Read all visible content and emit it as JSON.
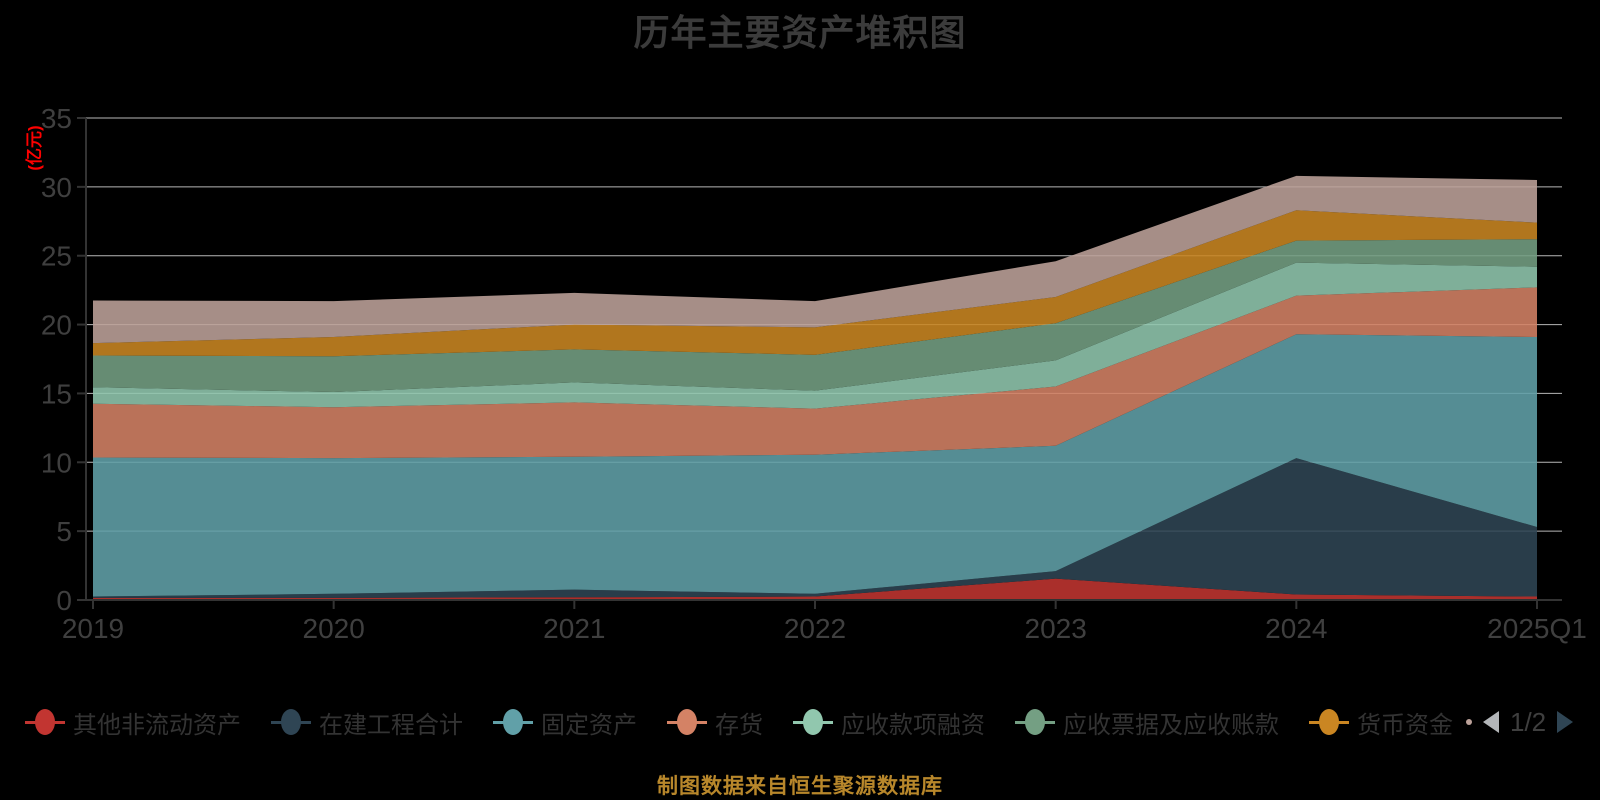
{
  "title": "历年主要资产堆积图",
  "y_axis": {
    "name": "(亿元)",
    "tick_labels": [
      "0",
      "5",
      "10",
      "15",
      "20",
      "25",
      "30",
      "35"
    ],
    "min": 0,
    "max": 35
  },
  "x_axis": {
    "tick_labels": [
      "2019",
      "2020",
      "2021",
      "2022",
      "2023",
      "2024",
      "2025Q1"
    ]
  },
  "legend": {
    "items": [
      {
        "label": "其他非流动资产",
        "color": "#c23531"
      },
      {
        "label": "在建工程合计",
        "color": "#2f4554"
      },
      {
        "label": "固定资产",
        "color": "#61a0a8"
      },
      {
        "label": "存货",
        "color": "#d48265"
      },
      {
        "label": "应收款项融资",
        "color": "#91c7ae"
      },
      {
        "label": "应收票据及应收账款",
        "color": "#749f83"
      },
      {
        "label": "货币资金",
        "color": "#ca8622"
      }
    ],
    "pager": {
      "label": "1/2",
      "prev_enabled": false,
      "next_enabled": true,
      "prev_color": "#b3b6b9",
      "next_color": "#2f4554",
      "overflow_dot_color": "#bda29a"
    }
  },
  "footer": "制图数据来自恒生聚源数据库",
  "colors": {
    "background": "#000000",
    "grid_line": "#cbcbcb",
    "axis_line": "#333333",
    "tick_label": "#3f3f3f",
    "title_text": "#3b3b3b",
    "legend_text": "#333333",
    "footer_text": "#b8872b",
    "y_axis_name": "#fd0100"
  },
  "chart_data": {
    "type": "area",
    "stacked": true,
    "smooth": false,
    "title": "历年主要资产堆积图",
    "unit": "亿元",
    "categories": [
      "2019",
      "2020",
      "2021",
      "2022",
      "2023",
      "2024",
      "2025Q1"
    ],
    "ylim": [
      0,
      35
    ],
    "y_tick_step": 5,
    "grid": true,
    "legend_position": "bottom",
    "area_opacity": 0.88,
    "series": [
      {
        "name": "其他非流动资产",
        "color": "#c23531",
        "values": [
          0.15,
          0.15,
          0.2,
          0.25,
          1.55,
          0.4,
          0.25
        ]
      },
      {
        "name": "在建工程合计",
        "color": "#2f4554",
        "values": [
          0.1,
          0.3,
          0.55,
          0.2,
          0.55,
          9.9,
          5.05
        ]
      },
      {
        "name": "固定资产",
        "color": "#61a0a8",
        "values": [
          10.1,
          9.85,
          9.65,
          10.1,
          9.1,
          9.0,
          13.8
        ]
      },
      {
        "name": "存货",
        "color": "#d48265",
        "values": [
          3.9,
          3.7,
          3.95,
          3.35,
          4.3,
          2.8,
          3.6
        ]
      },
      {
        "name": "应收款项融资",
        "color": "#91c7ae",
        "values": [
          1.2,
          1.1,
          1.45,
          1.3,
          1.9,
          2.4,
          1.5
        ]
      },
      {
        "name": "应收票据及应收账款",
        "color": "#749f83",
        "values": [
          2.3,
          2.6,
          2.4,
          2.6,
          2.7,
          1.6,
          2.0
        ]
      },
      {
        "name": "货币资金",
        "color": "#ca8622",
        "values": [
          0.9,
          1.4,
          1.8,
          2.0,
          1.9,
          2.2,
          1.2
        ]
      },
      {
        "name": "",
        "color": "#bda29a",
        "values": [
          3.1,
          2.6,
          2.3,
          1.9,
          2.6,
          2.5,
          3.1
        ]
      }
    ],
    "series_note": "topmost (#bda29a) series label is on legend page 2/2 and not visible in this view",
    "totals": [
      21.75,
      21.7,
      22.3,
      21.7,
      24.6,
      30.8,
      30.5
    ]
  }
}
